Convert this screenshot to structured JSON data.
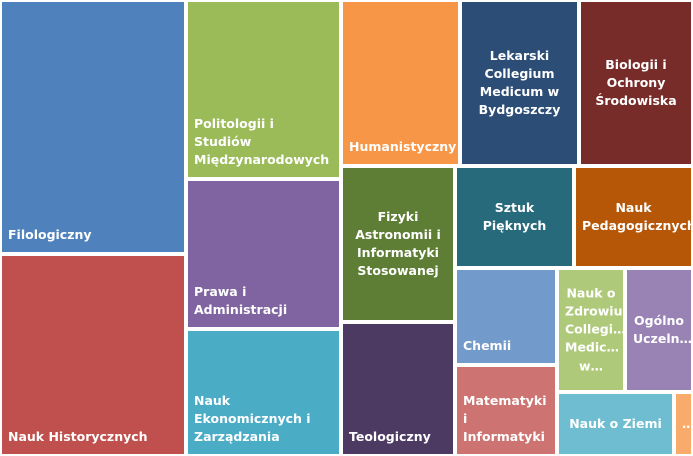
{
  "colors": {
    "blue": "#4f81bd",
    "red": "#c0504d",
    "green": "#9bbb59",
    "purple": "#8064a2",
    "aqua": "#4bacc6",
    "orange": "#f79646",
    "darkgreen": "#5e7d35",
    "darkpurple": "#4d3a63",
    "navy": "#2c4d75",
    "maroon": "#772c2a",
    "teal": "#276a7c",
    "burnt": "#b65708",
    "lightblue": "#729aca",
    "salmon": "#cd7371",
    "lightgreen": "#afc97a",
    "lavender": "#9983b5",
    "lightaqua": "#6fbdd1",
    "lightorange": "#f9ab6b"
  },
  "chart_data": {
    "type": "treemap",
    "items": [
      {
        "label": "Filologiczny",
        "value": 148,
        "color": "blue"
      },
      {
        "label": "Nauk Historycznych",
        "value": 127,
        "color": "red"
      },
      {
        "label": "Politologii i Studiów Międzynarodowych",
        "value": 86,
        "color": "green"
      },
      {
        "label": "Prawa i Administracji",
        "value": 79,
        "color": "purple"
      },
      {
        "label": "Nauk Ekonomicznych i Zarządzania",
        "value": 78,
        "color": "aqua"
      },
      {
        "label": "Humanistyczny",
        "value": 61,
        "color": "orange"
      },
      {
        "label": "Fizyki Astronomii i Informatyki Stosowanej",
        "value": 61,
        "color": "darkgreen"
      },
      {
        "label": "Teologiczny",
        "value": 56,
        "color": "darkpurple"
      },
      {
        "label": "Lekarski Collegium Medicum w Bydgoszczy",
        "value": 51,
        "color": "navy"
      },
      {
        "label": "Biologii i Ochrony Środowiska",
        "value": 50,
        "color": "maroon"
      },
      {
        "label": "Sztuk Pięknych",
        "value": 31,
        "color": "teal"
      },
      {
        "label": "Nauk Pedagogicznych",
        "value": 31,
        "color": "burnt"
      },
      {
        "label": "Chemii",
        "value": 26,
        "color": "lightblue"
      },
      {
        "label": "Matematyki i Informatyki",
        "value": 23,
        "color": "salmon"
      },
      {
        "label": "Nauk o Zdrowiu Collegi… Medic… w…",
        "value": 16,
        "color": "lightgreen"
      },
      {
        "label": "Ogólno Uczeln…",
        "value": 16,
        "color": "lavender"
      },
      {
        "label": "Nauk o Ziemi",
        "value": 13,
        "color": "lightaqua"
      },
      {
        "label": "…",
        "value": 3,
        "color": "lightorange"
      }
    ]
  }
}
